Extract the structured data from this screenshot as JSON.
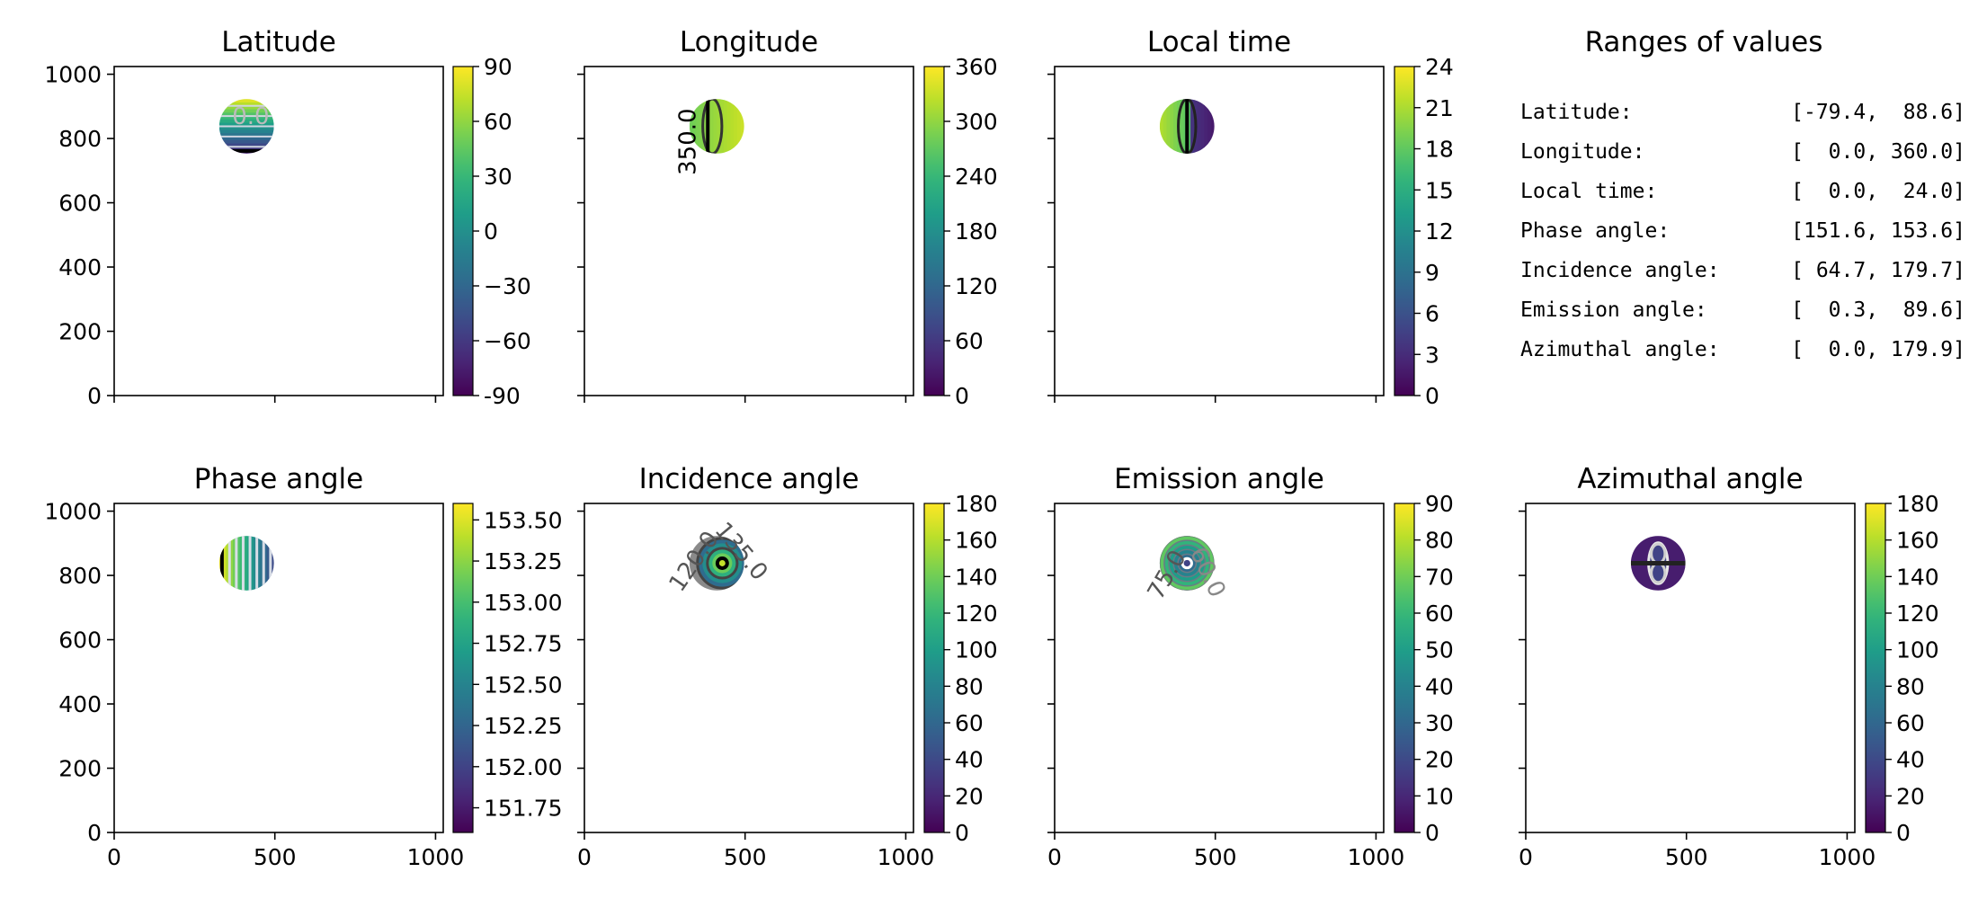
{
  "chart_data": [
    {
      "type": "heatmap",
      "title": "Latitude",
      "x_ticks": [
        0,
        500,
        1000
      ],
      "y_ticks": [
        0,
        200,
        400,
        600,
        800,
        1000
      ],
      "xlim": [
        0,
        1024
      ],
      "ylim": [
        0,
        1024
      ],
      "disk": {
        "cx": 412,
        "cy": 838,
        "r": 85
      },
      "colorbar": {
        "range": [
          -90,
          90
        ],
        "ticks": [
          "-90",
          "−60",
          "−30",
          "0",
          "30",
          "60",
          "90"
        ]
      },
      "contour_labels": [
        {
          "text": "0.0",
          "x": 425,
          "y": 845,
          "rotation": 0,
          "color": "#bbbbbb"
        }
      ],
      "pattern": "horizontal-bands"
    },
    {
      "type": "heatmap",
      "title": "Longitude",
      "x_ticks": [
        0,
        500,
        1000
      ],
      "y_ticks": [
        0,
        200,
        400,
        600,
        800,
        1000
      ],
      "xlim": [
        0,
        1024
      ],
      "ylim": [
        0,
        1024
      ],
      "disk": {
        "cx": 412,
        "cy": 838,
        "r": 85
      },
      "colorbar": {
        "range": [
          0,
          360
        ],
        "ticks": [
          "0",
          "60",
          "120",
          "180",
          "240",
          "300",
          "360"
        ]
      },
      "contour_labels": [
        {
          "text": "350.0",
          "x": 345,
          "y": 790,
          "rotation": -90,
          "color": "#000000"
        }
      ],
      "pattern": "vertical-bands"
    },
    {
      "type": "heatmap",
      "title": "Local time",
      "x_ticks": [
        0,
        500,
        1000
      ],
      "y_ticks": [
        0,
        200,
        400,
        600,
        800,
        1000
      ],
      "xlim": [
        0,
        1024
      ],
      "ylim": [
        0,
        1024
      ],
      "disk": {
        "cx": 412,
        "cy": 838,
        "r": 85
      },
      "colorbar": {
        "range": [
          0,
          24
        ],
        "ticks": [
          "0",
          "3",
          "6",
          "9",
          "12",
          "15",
          "18",
          "21",
          "24"
        ]
      },
      "contour_labels": [],
      "pattern": "meridians"
    },
    {
      "type": "heatmap",
      "title": "Phase angle",
      "x_ticks": [
        0,
        500,
        1000
      ],
      "y_ticks": [
        0,
        200,
        400,
        600,
        800,
        1000
      ],
      "xlim": [
        0,
        1024
      ],
      "ylim": [
        0,
        1024
      ],
      "disk": {
        "cx": 412,
        "cy": 838,
        "r": 85
      },
      "colorbar": {
        "range": [
          151.6,
          153.6
        ],
        "ticks": [
          "151.75",
          "152.00",
          "152.25",
          "152.50",
          "152.75",
          "153.00",
          "153.25",
          "153.50"
        ],
        "tick_values": [
          151.75,
          152.0,
          152.25,
          152.5,
          152.75,
          153.0,
          153.25,
          153.5
        ]
      },
      "contour_labels": [],
      "pattern": "vertical-stripes"
    },
    {
      "type": "heatmap",
      "title": "Incidence angle",
      "x_ticks": [
        0,
        500,
        1000
      ],
      "y_ticks": [
        0,
        200,
        400,
        600,
        800,
        1000
      ],
      "xlim": [
        0,
        1024
      ],
      "ylim": [
        0,
        1024
      ],
      "disk": {
        "cx": 412,
        "cy": 838,
        "r": 85
      },
      "colorbar": {
        "range": [
          0,
          180
        ],
        "ticks": [
          "0",
          "20",
          "40",
          "60",
          "80",
          "100",
          "120",
          "140",
          "160",
          "180"
        ]
      },
      "contour_labels": [
        {
          "text": "135.0",
          "x": 470,
          "y": 860,
          "rotation": 50,
          "color": "#555555"
        },
        {
          "text": "120.0",
          "x": 360,
          "y": 830,
          "rotation": -55,
          "color": "#555555"
        }
      ],
      "pattern": "concentric"
    },
    {
      "type": "heatmap",
      "title": "Emission angle",
      "x_ticks": [
        0,
        500,
        1000
      ],
      "y_ticks": [
        0,
        200,
        400,
        600,
        800,
        1000
      ],
      "xlim": [
        0,
        1024
      ],
      "ylim": [
        0,
        1024
      ],
      "disk": {
        "cx": 412,
        "cy": 838,
        "r": 85
      },
      "colorbar": {
        "range": [
          0,
          90
        ],
        "ticks": [
          "0",
          "10",
          "20",
          "30",
          "40",
          "50",
          "60",
          "70",
          "80",
          "90"
        ]
      },
      "contour_labels": [
        {
          "text": "75.0",
          "x": 370,
          "y": 790,
          "rotation": -60,
          "color": "#555555"
        },
        {
          "text": "60.0",
          "x": 455,
          "y": 800,
          "rotation": 65,
          "color": "#888888"
        }
      ],
      "pattern": "rings"
    },
    {
      "type": "heatmap",
      "title": "Azimuthal angle",
      "x_ticks": [
        0,
        500,
        1000
      ],
      "y_ticks": [
        0,
        200,
        400,
        600,
        800,
        1000
      ],
      "xlim": [
        0,
        1024
      ],
      "ylim": [
        0,
        1024
      ],
      "disk": {
        "cx": 412,
        "cy": 838,
        "r": 85
      },
      "colorbar": {
        "range": [
          0,
          180
        ],
        "ticks": [
          "0",
          "20",
          "40",
          "60",
          "80",
          "100",
          "120",
          "140",
          "160",
          "180"
        ]
      },
      "contour_labels": [],
      "pattern": "lobes"
    },
    {
      "type": "table",
      "title": "Ranges of values",
      "rows": [
        {
          "label": "Latitude:",
          "range": "[-79.4,  88.6]"
        },
        {
          "label": "Longitude:",
          "range": "[  0.0, 360.0]"
        },
        {
          "label": "Local time:",
          "range": "[  0.0,  24.0]"
        },
        {
          "label": "Phase angle:",
          "range": "[151.6, 153.6]"
        },
        {
          "label": "Incidence angle:",
          "range": "[ 64.7, 179.7]"
        },
        {
          "label": "Emission angle:",
          "range": "[  0.3,  89.6]"
        },
        {
          "label": "Azimuthal angle:",
          "range": "[  0.0, 179.9]"
        }
      ]
    }
  ],
  "colors": {
    "viridis_start": "#440154",
    "viridis_end": "#fde725",
    "axis": "#000000",
    "background": "#ffffff"
  }
}
